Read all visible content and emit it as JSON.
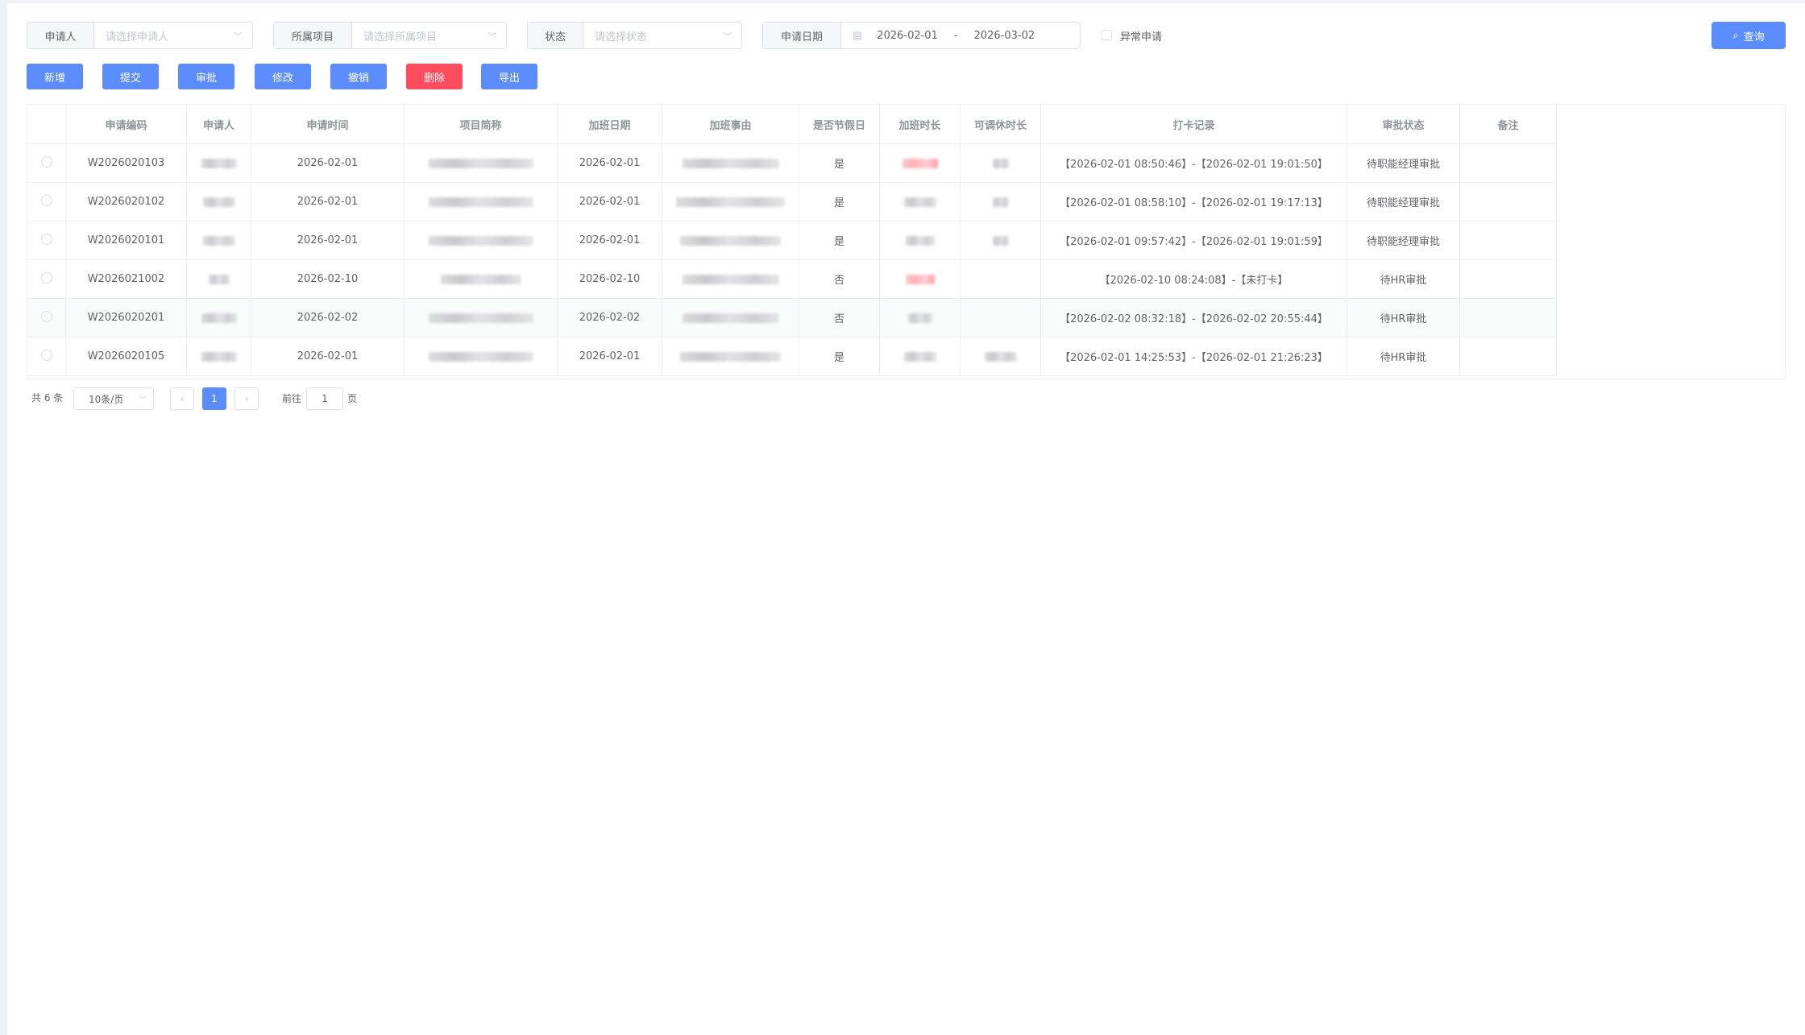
{
  "filters": {
    "applicant": {
      "label": "申请人",
      "placeholder": "请选择申请人"
    },
    "project": {
      "label": "所属项目",
      "placeholder": "请选择所属项目"
    },
    "status": {
      "label": "状态",
      "placeholder": "请选择状态"
    },
    "date": {
      "label": "申请日期",
      "start": "2026-02-01",
      "separator": "-",
      "end": "2026-03-02"
    },
    "abnormal": {
      "label": "异常申请",
      "checked": false
    },
    "query_label": "查询"
  },
  "toolbar": {
    "add": "新增",
    "submit": "提交",
    "approve": "审批",
    "edit": "修改",
    "revoke": "撤销",
    "delete": "删除",
    "export": "导出"
  },
  "colors": {
    "primary": "#5b8dff",
    "danger": "#ff4d5e"
  },
  "table": {
    "headers": [
      "申请编码",
      "申请人",
      "申请时间",
      "项目简称",
      "加班日期",
      "加班事由",
      "是否节假日",
      "加班时长",
      "可调休时长",
      "打卡记录",
      "审批状态",
      "备注"
    ],
    "rows": [
      {
        "code": "W2026020103",
        "time": "2026-02-01",
        "date": "2026-02-01",
        "holiday": "是",
        "record": "【2026-02-01 08:50:46】-【2026-02-01 19:01:50】",
        "status": "待职能经理审批"
      },
      {
        "code": "W2026020102",
        "time": "2026-02-01",
        "date": "2026-02-01",
        "holiday": "是",
        "record": "【2026-02-01 08:58:10】-【2026-02-01 19:17:13】",
        "status": "待职能经理审批"
      },
      {
        "code": "W2026020101",
        "time": "2026-02-01",
        "date": "2026-02-01",
        "holiday": "是",
        "record": "【2026-02-01 09:57:42】-【2026-02-01 19:01:59】",
        "status": "待职能经理审批"
      },
      {
        "code": "W2026021002",
        "time": "2026-02-10",
        "date": "2026-02-10",
        "holiday": "否",
        "record": "【2026-02-10 08:24:08】-【未打卡】",
        "status": "待HR审批"
      },
      {
        "code": "W2026020201",
        "time": "2026-02-02",
        "date": "2026-02-02",
        "holiday": "否",
        "record": "【2026-02-02 08:32:18】-【2026-02-02 20:55:44】",
        "status": "待HR审批"
      },
      {
        "code": "W2026020105",
        "time": "2026-02-01",
        "date": "2026-02-01",
        "holiday": "是",
        "record": "【2026-02-01 14:25:53】-【2026-02-01 21:26:23】",
        "status": "待HR审批"
      }
    ]
  },
  "pagination": {
    "total": "共 6 条",
    "page_size": "10条/页",
    "current_page": "1",
    "goto_label": "前往",
    "goto_value": "1",
    "page_suffix": "页"
  }
}
